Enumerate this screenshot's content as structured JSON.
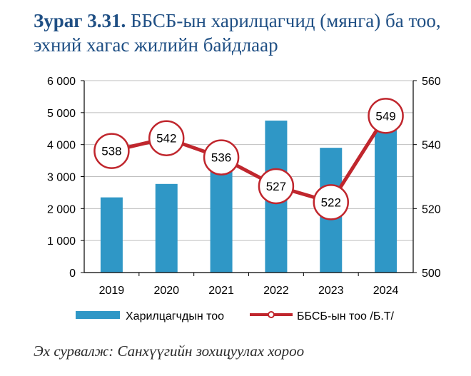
{
  "figure": {
    "number_label": "Зураг 3.31.",
    "title": "ББСБ-ын харилцагчид (мянга) ба тоо, эхний хагас жилийн байдлаар",
    "source": "Эх сурвалж: Санхүүгийн зохицуулах хороо"
  },
  "colors": {
    "bars": "#2f97c6",
    "line": "#c0262d",
    "title": "#1f4f84",
    "grid": "#bfbfbf"
  },
  "chart_data": {
    "type": "bar",
    "categories": [
      "2019",
      "2020",
      "2021",
      "2022",
      "2023",
      "2024"
    ],
    "series": [
      {
        "name": "Харилцагчдын тоо",
        "type": "bar",
        "axis": "left",
        "values": [
          2350,
          2770,
          3200,
          4750,
          3900,
          4450
        ]
      },
      {
        "name": "ББСБ-ын тоо /Б.Т/",
        "type": "line",
        "axis": "right",
        "values": [
          538,
          542,
          536,
          527,
          522,
          549
        ],
        "data_labels": [
          "538",
          "542",
          "536",
          "527",
          "522",
          "549"
        ]
      }
    ],
    "y_left": {
      "range": [
        0,
        6000
      ],
      "ticks": [
        0,
        1000,
        2000,
        3000,
        4000,
        5000,
        6000
      ],
      "tick_labels": [
        "0",
        "1 000",
        "2 000",
        "3 000",
        "4 000",
        "5 000",
        "6 000"
      ]
    },
    "y_right": {
      "range": [
        500,
        560
      ],
      "ticks": [
        500,
        520,
        540,
        560
      ],
      "tick_labels": [
        "500",
        "520",
        "540",
        "560"
      ]
    },
    "grid": true,
    "legend_position": "bottom"
  }
}
